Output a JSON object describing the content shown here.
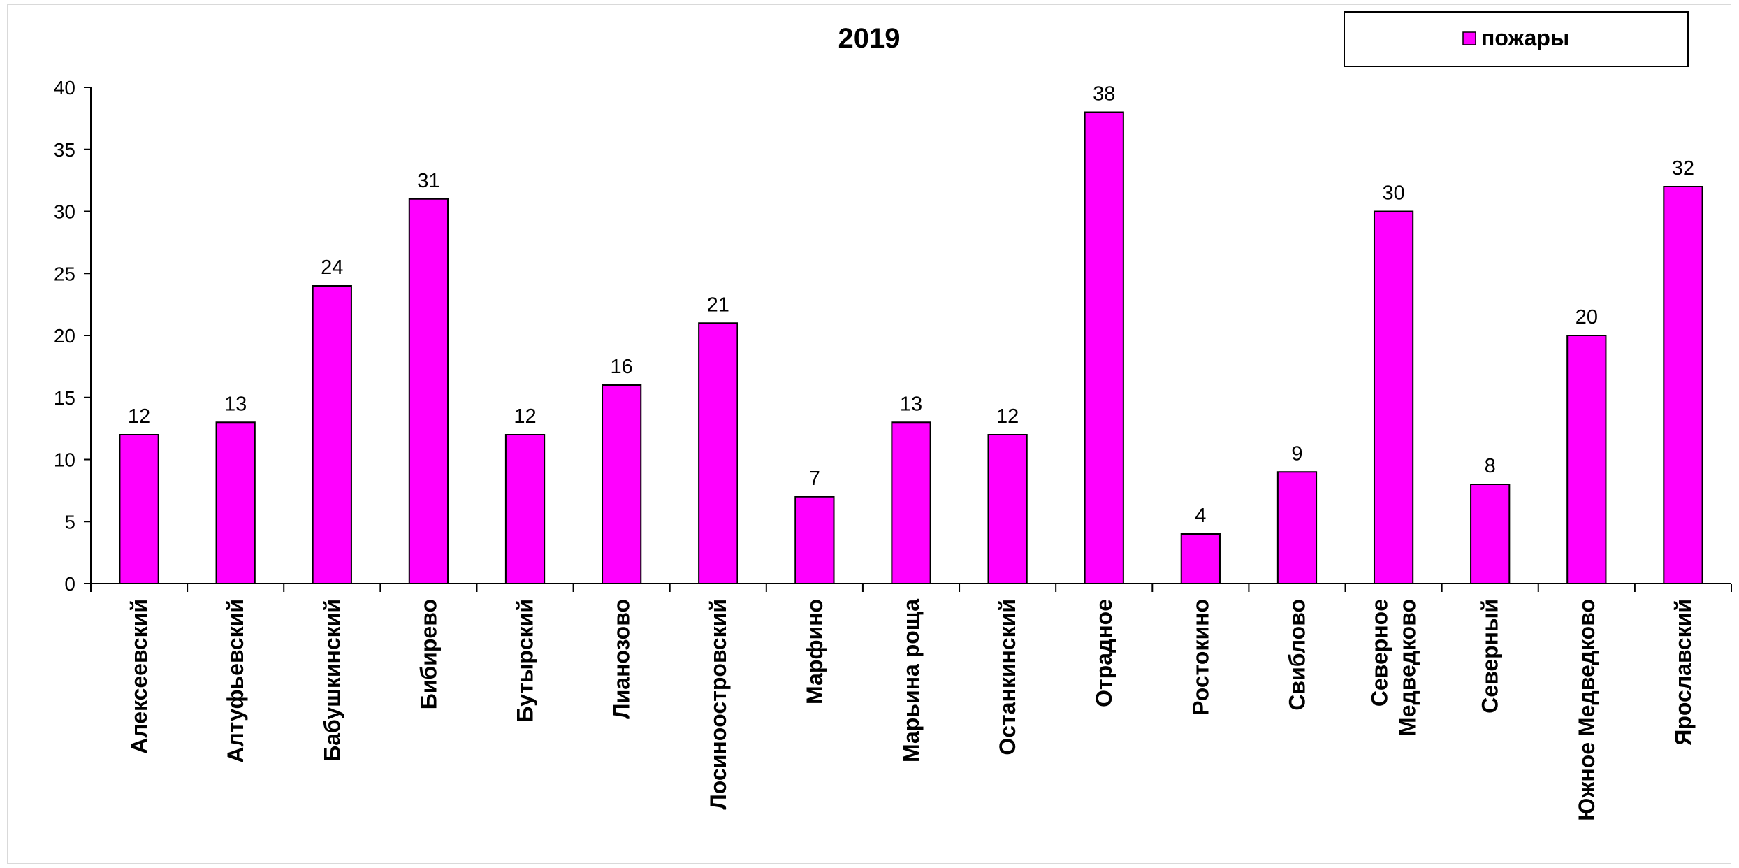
{
  "chart_data": {
    "type": "bar",
    "title": "2019",
    "xlabel": "",
    "ylabel": "",
    "ylim": [
      0,
      40
    ],
    "yticks": [
      0,
      5,
      10,
      15,
      20,
      25,
      30,
      35,
      40
    ],
    "grid": false,
    "legend_position": "top-right",
    "categories": [
      [
        "Алексеевский"
      ],
      [
        "Алтуфьевский"
      ],
      [
        "Бабушкинский"
      ],
      [
        "Бибирево"
      ],
      [
        "Бутырский"
      ],
      [
        "Лианозово"
      ],
      [
        "Лосиноостровский"
      ],
      [
        "Марфино"
      ],
      [
        "Марьина роща"
      ],
      [
        "Останкинский"
      ],
      [
        "Отрадное"
      ],
      [
        "Ростокино"
      ],
      [
        "Свиблово"
      ],
      [
        "Северное",
        "Медведково"
      ],
      [
        "Северный"
      ],
      [
        "Южное Медведково"
      ],
      [
        "Ярославский"
      ]
    ],
    "series": [
      {
        "name": "пожары",
        "color": "#ff00ff",
        "values": [
          12,
          13,
          24,
          31,
          12,
          16,
          21,
          7,
          13,
          12,
          38,
          4,
          9,
          30,
          8,
          20,
          32
        ]
      }
    ]
  }
}
